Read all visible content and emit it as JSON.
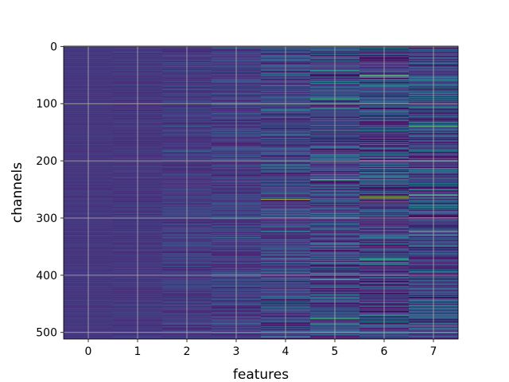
{
  "chart_data": {
    "type": "heatmap",
    "title": "",
    "xlabel": "features",
    "ylabel": "channels",
    "x_ticks": [
      0,
      1,
      2,
      3,
      4,
      5,
      6,
      7
    ],
    "y_ticks": [
      0,
      100,
      200,
      300,
      400,
      500
    ],
    "xlim": [
      -0.5,
      7.5
    ],
    "ylim": [
      511.5,
      -0.5
    ],
    "n_rows": 512,
    "n_cols": 8,
    "grid": true,
    "colormap": "viridis",
    "column_variability": [
      0.02,
      0.04,
      0.07,
      0.1,
      0.16,
      0.2,
      0.24,
      0.22
    ],
    "column_mean": [
      0.16,
      0.16,
      0.17,
      0.18,
      0.2,
      0.21,
      0.2,
      0.2
    ],
    "bright_lines": [
      {
        "feature": 4,
        "channel": 267,
        "value": 0.95
      },
      {
        "feature": 5,
        "channel": 233,
        "value": 0.85
      },
      {
        "feature": 5,
        "channel": 183,
        "value": 0.6
      },
      {
        "feature": 5,
        "channel": 108,
        "value": 0.6
      },
      {
        "feature": 5,
        "channel": 18,
        "value": 0.6
      },
      {
        "feature": 6,
        "channel": 265,
        "value": 0.97
      },
      {
        "feature": 6,
        "channel": 262,
        "value": 0.8
      },
      {
        "feature": 6,
        "channel": 29,
        "value": 0.6
      },
      {
        "feature": 6,
        "channel": 470,
        "value": 0.6
      },
      {
        "feature": 7,
        "channel": 260,
        "value": 0.9
      },
      {
        "feature": 7,
        "channel": 324,
        "value": 0.95
      },
      {
        "feature": 7,
        "channel": 139,
        "value": 0.75
      },
      {
        "feature": 7,
        "channel": 72,
        "value": 0.6
      }
    ]
  }
}
